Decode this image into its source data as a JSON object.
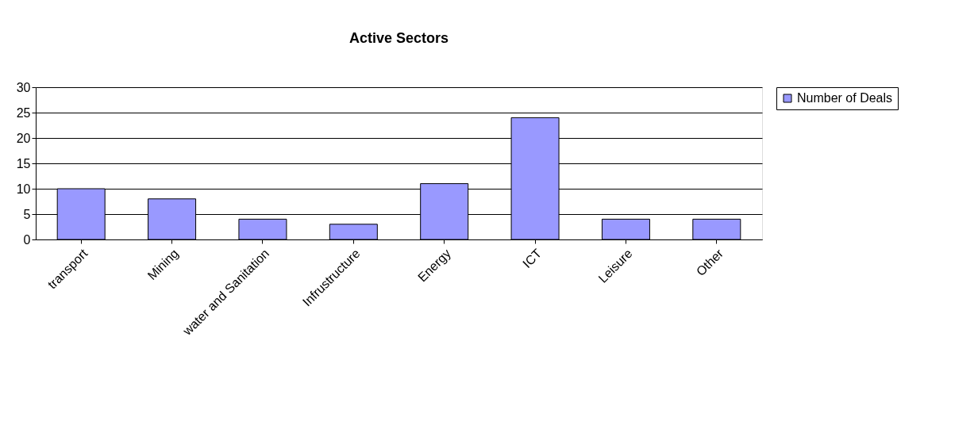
{
  "chart_data": {
    "type": "bar",
    "title": "Active Sectors",
    "categories": [
      "transport",
      "Mining",
      "water and Sanitation",
      "Infrustructure",
      "Energy",
      "ICT",
      "Leisure",
      "Other"
    ],
    "series": [
      {
        "name": "Number of Deals",
        "color": "#9999ff",
        "values": [
          10,
          8,
          4,
          3,
          11,
          24,
          4,
          4
        ]
      }
    ],
    "ylim": [
      0,
      30
    ],
    "yticks": [
      0,
      5,
      10,
      15,
      20,
      25,
      30
    ],
    "grid": "y",
    "legend": "right"
  }
}
